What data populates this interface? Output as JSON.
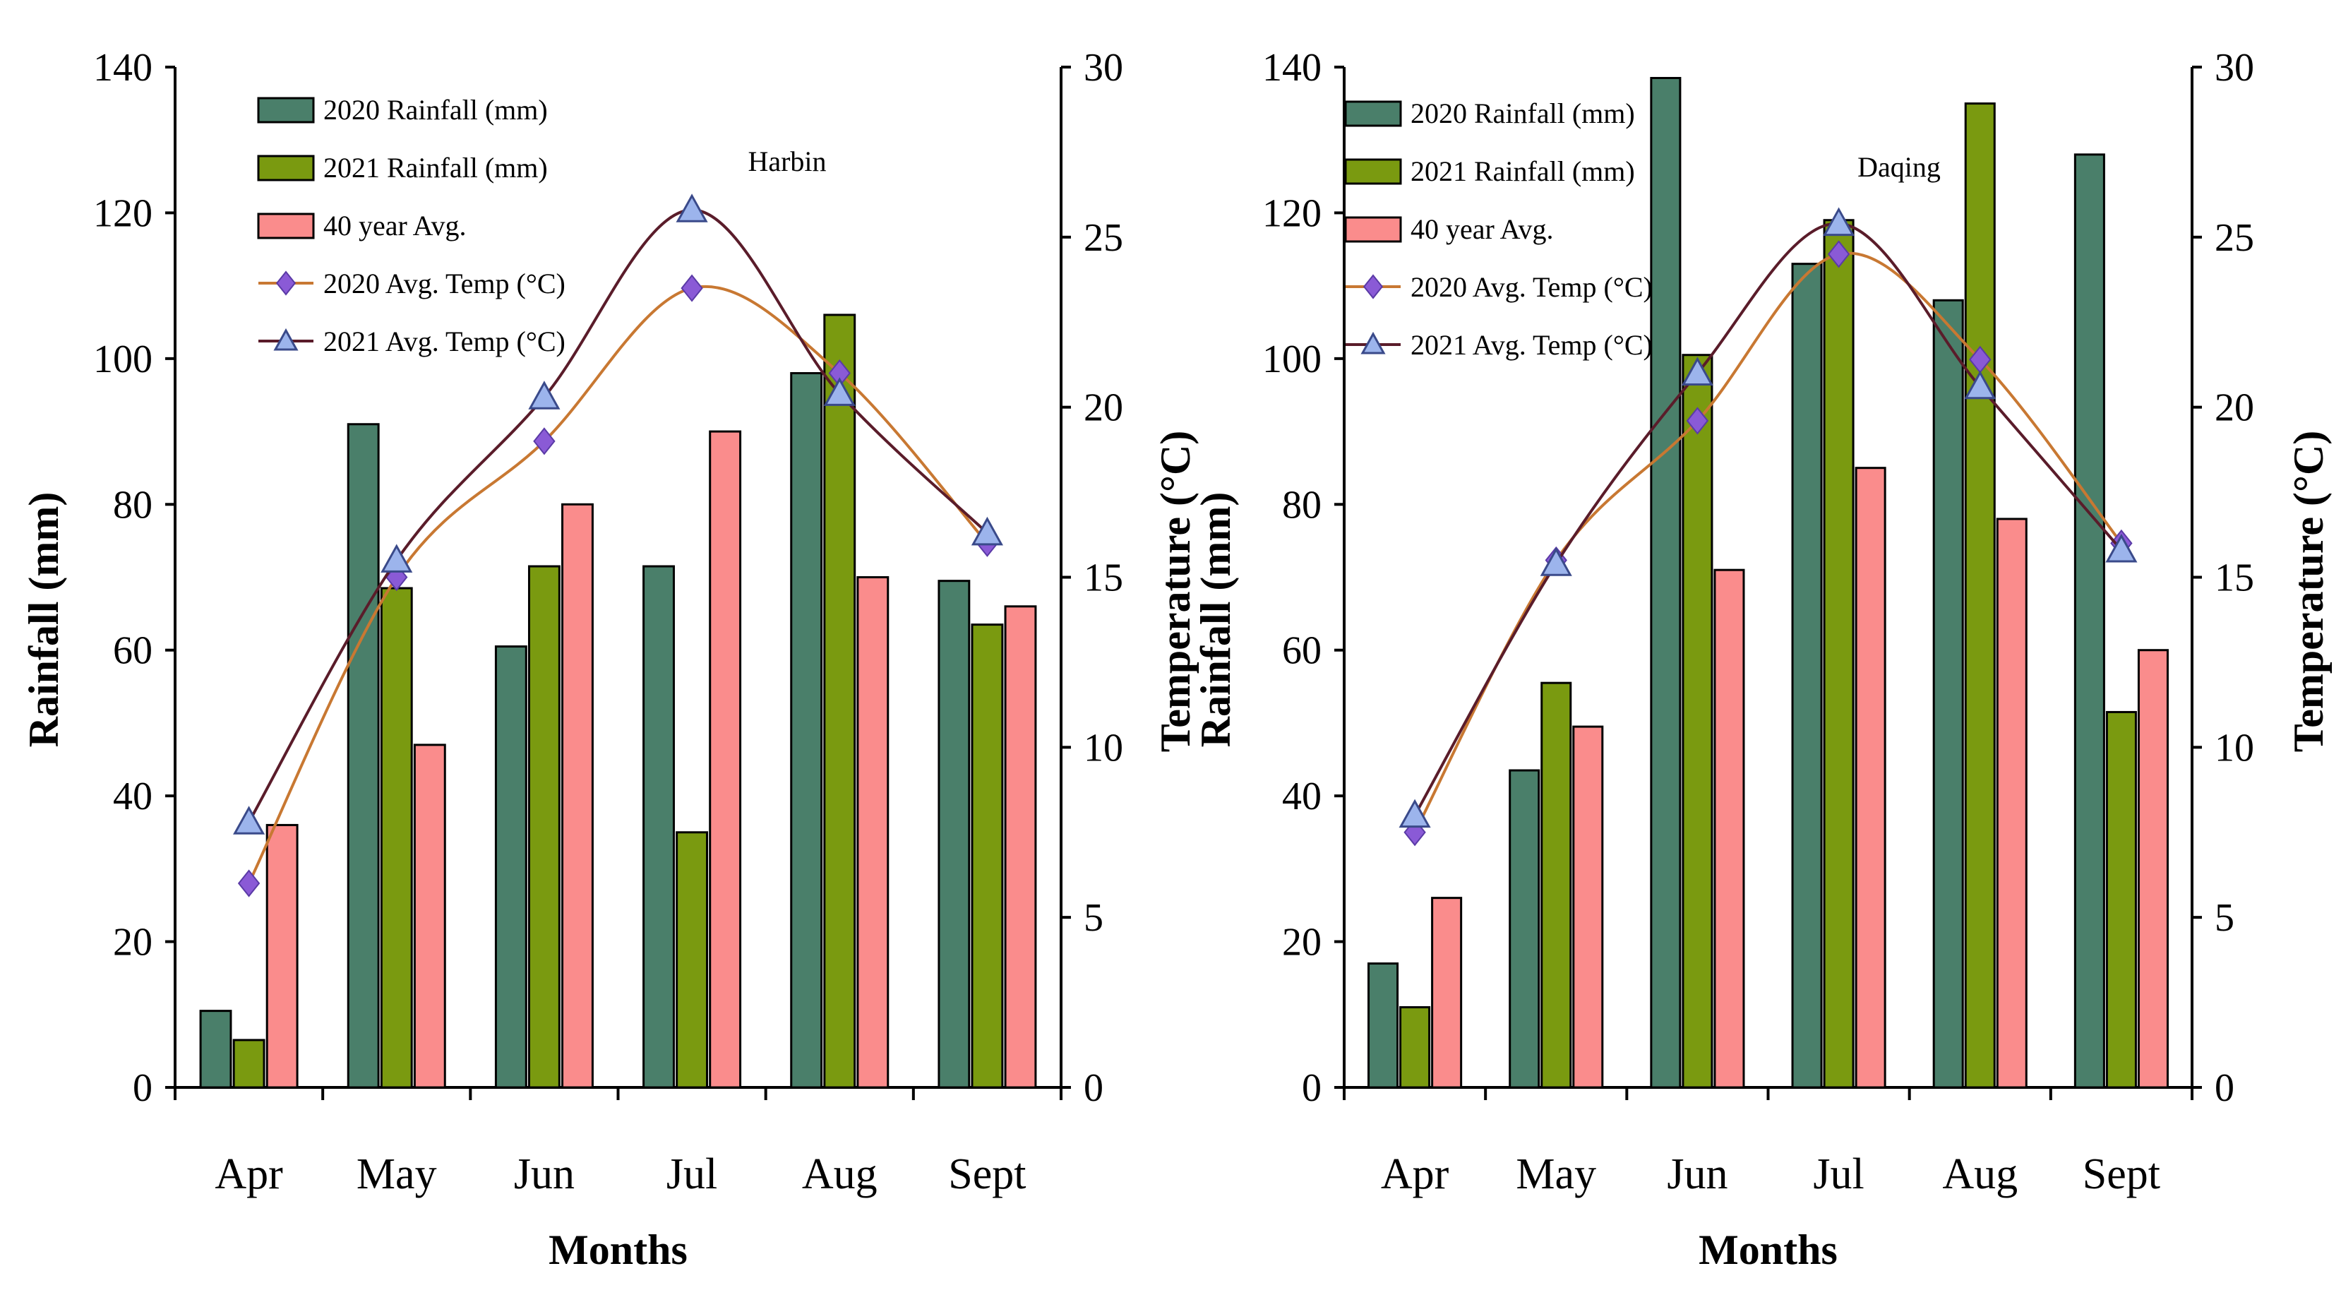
{
  "chart_data": [
    {
      "type": "bar",
      "title": "Harbin",
      "xlabel": "Months",
      "ylabel": "Rainfall (mm)",
      "y2label": "Temperature (°C)",
      "ylim": [
        0,
        140
      ],
      "y2lim": [
        0,
        30
      ],
      "yticks": [
        0,
        20,
        40,
        60,
        80,
        100,
        120,
        140
      ],
      "y2ticks": [
        0,
        5,
        10,
        15,
        20,
        25,
        30
      ],
      "categories": [
        "Apr",
        "May",
        "Jun",
        "Jul",
        "Aug",
        "Sept"
      ],
      "series": [
        {
          "name": "2020 Rainfall (mm)",
          "kind": "bar",
          "axis": "left",
          "color": "#4a7f6a",
          "values": [
            10.5,
            91,
            60.5,
            71.5,
            98,
            69.5
          ]
        },
        {
          "name": "2021 Rainfall (mm)",
          "kind": "bar",
          "axis": "left",
          "color": "#7a9a10",
          "values": [
            6.5,
            68.5,
            71.5,
            35,
            106,
            63.5
          ]
        },
        {
          "name": "40 year Avg.",
          "kind": "bar",
          "axis": "left",
          "color": "#fa8c8c",
          "values": [
            36,
            47,
            80,
            90,
            70,
            66
          ]
        },
        {
          "name": "2020 Avg. Temp (°C)",
          "kind": "line",
          "marker": "diamond",
          "axis": "right",
          "color": "#c87832",
          "marker_color": "#8a5ad6",
          "values": [
            6,
            15,
            19,
            23.5,
            21,
            16
          ]
        },
        {
          "name": "2021 Avg. Temp (°C)",
          "kind": "line",
          "marker": "triangle",
          "axis": "right",
          "color": "#5a1c2a",
          "marker_color": "#9cb4ec",
          "values": [
            7.8,
            15.5,
            20.3,
            25.8,
            20.4,
            16.3
          ]
        }
      ],
      "legend": "top-left"
    },
    {
      "type": "bar",
      "title": "Daqing",
      "xlabel": "Months",
      "ylabel": "Rainfall (mm)",
      "y2label": "Temperature (°C)",
      "ylim": [
        0,
        140
      ],
      "y2lim": [
        0,
        30
      ],
      "yticks": [
        0,
        20,
        40,
        60,
        80,
        100,
        120,
        140
      ],
      "y2ticks": [
        0,
        5,
        10,
        15,
        20,
        25,
        30
      ],
      "categories": [
        "Apr",
        "May",
        "Jun",
        "Jul",
        "Aug",
        "Sept"
      ],
      "series": [
        {
          "name": "2020 Rainfall (mm)",
          "kind": "bar",
          "axis": "left",
          "color": "#4a7f6a",
          "values": [
            17,
            43.5,
            138.5,
            113,
            108,
            128
          ]
        },
        {
          "name": "2021 Rainfall (mm)",
          "kind": "bar",
          "axis": "left",
          "color": "#7a9a10",
          "values": [
            11,
            55.5,
            100.5,
            119,
            135,
            51.5
          ]
        },
        {
          "name": "40 year Avg.",
          "kind": "bar",
          "axis": "left",
          "color": "#fa8c8c",
          "values": [
            26,
            49.5,
            71,
            85,
            78,
            60
          ]
        },
        {
          "name": "2020 Avg. Temp (°C)",
          "kind": "line",
          "marker": "diamond",
          "axis": "right",
          "color": "#c87832",
          "marker_color": "#8a5ad6",
          "values": [
            7.5,
            15.5,
            19.6,
            24.5,
            21.4,
            16
          ]
        },
        {
          "name": "2021 Avg. Temp (°C)",
          "kind": "line",
          "marker": "triangle",
          "axis": "right",
          "color": "#5a1c2a",
          "marker_color": "#9cb4ec",
          "values": [
            8,
            15.4,
            21,
            25.4,
            20.6,
            15.8
          ]
        }
      ],
      "legend": "top-left"
    }
  ]
}
